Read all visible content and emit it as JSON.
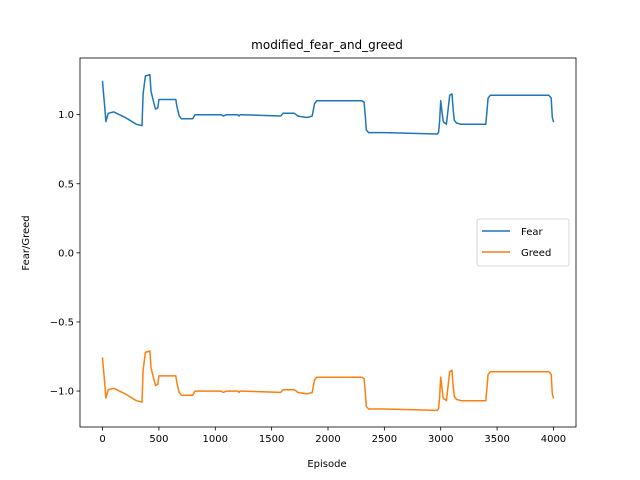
{
  "chart_data": {
    "type": "line",
    "title": "modified_fear_and_greed",
    "xlabel": "Episode",
    "ylabel": "Fear/Greed",
    "xlim": [
      -200,
      4200
    ],
    "ylim": [
      -1.26,
      1.41
    ],
    "xticks": [
      0,
      500,
      1000,
      1500,
      2000,
      2500,
      3000,
      3500,
      4000
    ],
    "xtick_labels": [
      "0",
      "500",
      "1000",
      "1500",
      "2000",
      "2500",
      "3000",
      "3500",
      "4000"
    ],
    "yticks": [
      -1.0,
      -0.5,
      0.0,
      0.5,
      1.0
    ],
    "ytick_labels": [
      "−1.0",
      "−0.5",
      "0.0",
      "0.5",
      "1.0"
    ],
    "grid": false,
    "legend_position": "center-right",
    "series": [
      {
        "name": "Fear",
        "color": "#1f77b4",
        "x": [
          0,
          20,
          30,
          50,
          100,
          200,
          300,
          350,
          360,
          380,
          420,
          430,
          450,
          470,
          490,
          500,
          650,
          660,
          680,
          700,
          800,
          820,
          1050,
          1070,
          1100,
          1200,
          1210,
          1220,
          1230,
          1580,
          1590,
          1600,
          1700,
          1720,
          1730,
          1800,
          1820,
          1860,
          1880,
          1900,
          2300,
          2320,
          2330,
          2340,
          2360,
          2500,
          2970,
          2980,
          2990,
          3000,
          3020,
          3030,
          3040,
          3050,
          3080,
          3100,
          3110,
          3120,
          3140,
          3180,
          3400,
          3410,
          3420,
          3440,
          3500,
          3960,
          3980,
          3990,
          4000
        ],
        "y": [
          1.24,
          1.05,
          0.95,
          1.01,
          1.02,
          0.98,
          0.93,
          0.92,
          1.15,
          1.28,
          1.29,
          1.17,
          1.1,
          1.04,
          1.05,
          1.11,
          1.11,
          1.06,
          0.99,
          0.97,
          0.97,
          1.0,
          1.0,
          0.99,
          1.0,
          1.0,
          0.99,
          1.0,
          1.0,
          0.99,
          1.0,
          1.01,
          1.01,
          1.0,
          0.99,
          0.98,
          0.98,
          0.99,
          1.08,
          1.1,
          1.1,
          1.09,
          1.0,
          0.89,
          0.87,
          0.87,
          0.86,
          0.87,
          0.95,
          1.1,
          0.96,
          0.94,
          0.94,
          0.93,
          1.14,
          1.15,
          1.04,
          0.96,
          0.94,
          0.93,
          0.93,
          1.02,
          1.12,
          1.14,
          1.14,
          1.14,
          1.12,
          0.98,
          0.95
        ]
      },
      {
        "name": "Greed",
        "color": "#ff7f0e",
        "x": [
          0,
          20,
          30,
          50,
          100,
          200,
          300,
          350,
          360,
          380,
          420,
          430,
          450,
          470,
          490,
          500,
          650,
          660,
          680,
          700,
          800,
          820,
          1050,
          1070,
          1100,
          1200,
          1210,
          1220,
          1230,
          1580,
          1590,
          1600,
          1700,
          1720,
          1730,
          1800,
          1820,
          1860,
          1880,
          1900,
          2300,
          2320,
          2330,
          2340,
          2360,
          2500,
          2970,
          2980,
          2990,
          3000,
          3020,
          3030,
          3040,
          3050,
          3080,
          3100,
          3110,
          3120,
          3140,
          3180,
          3400,
          3410,
          3420,
          3440,
          3500,
          3960,
          3980,
          3990,
          4000
        ],
        "y": [
          -0.76,
          -0.95,
          -1.05,
          -0.99,
          -0.98,
          -1.02,
          -1.07,
          -1.08,
          -0.85,
          -0.72,
          -0.71,
          -0.83,
          -0.9,
          -0.96,
          -0.95,
          -0.89,
          -0.89,
          -0.94,
          -1.01,
          -1.03,
          -1.03,
          -1.0,
          -1.0,
          -1.01,
          -1.0,
          -1.0,
          -1.01,
          -1.0,
          -1.0,
          -1.01,
          -1.0,
          -0.99,
          -0.99,
          -1.0,
          -1.01,
          -1.02,
          -1.02,
          -1.01,
          -0.92,
          -0.9,
          -0.9,
          -0.91,
          -1.0,
          -1.11,
          -1.13,
          -1.13,
          -1.14,
          -1.13,
          -1.05,
          -0.9,
          -1.04,
          -1.06,
          -1.06,
          -1.07,
          -0.86,
          -0.85,
          -0.96,
          -1.04,
          -1.06,
          -1.07,
          -1.07,
          -0.98,
          -0.88,
          -0.86,
          -0.86,
          -0.86,
          -0.88,
          -1.02,
          -1.05
        ]
      }
    ]
  }
}
